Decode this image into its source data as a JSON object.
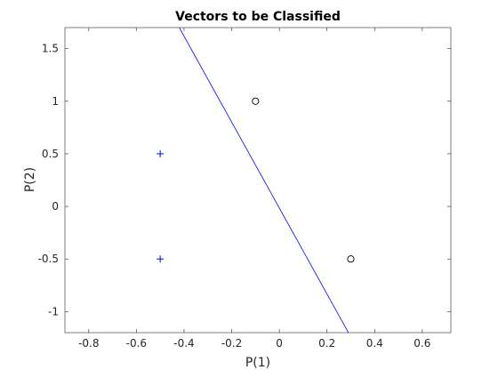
{
  "chart_data": {
    "type": "scatter",
    "title": "Vectors to be Classified",
    "xlabel": "P(1)",
    "ylabel": "P(2)",
    "xlim": [
      -0.9,
      0.72
    ],
    "ylim": [
      -1.2,
      1.7
    ],
    "xticks": [
      -0.8,
      -0.6,
      -0.4,
      -0.2,
      0,
      0.2,
      0.4,
      0.6
    ],
    "xtick_labels": [
      "-0.8",
      "-0.6",
      "-0.4",
      "-0.2",
      "0",
      "0.2",
      "0.4",
      "0.6"
    ],
    "yticks": [
      -1,
      -0.5,
      0,
      0.5,
      1,
      1.5
    ],
    "ytick_labels": [
      "-1",
      "-0.5",
      "0",
      "0.5",
      "1",
      "1.5"
    ],
    "grid": false,
    "series": [
      {
        "marker": "plus",
        "color": "#0000ff",
        "points": [
          [
            -0.5,
            0.5
          ],
          [
            -0.5,
            -0.5
          ]
        ]
      },
      {
        "marker": "circle",
        "color": "#0000ff",
        "points": [
          [
            -0.1,
            1.0
          ],
          [
            0.3,
            -0.5
          ]
        ]
      }
    ],
    "decision_line": {
      "color": "#0000ff",
      "points": [
        [
          -0.42,
          1.7
        ],
        [
          0.29,
          -1.2
        ]
      ]
    }
  }
}
